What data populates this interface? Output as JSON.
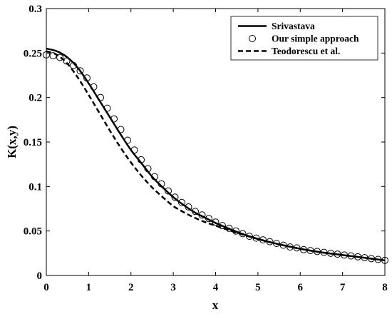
{
  "chart_data": {
    "type": "line",
    "title": "",
    "xlabel": "x",
    "ylabel": "K(x,y)",
    "xlim": [
      0,
      8
    ],
    "ylim": [
      0,
      0.3
    ],
    "xticks": [
      0,
      1,
      2,
      3,
      4,
      5,
      6,
      7,
      8
    ],
    "xtick_labels": [
      "0",
      "1",
      "2",
      "3",
      "4",
      "5",
      "6",
      "7",
      "8"
    ],
    "yticks": [
      0,
      0.05,
      0.1,
      0.15,
      0.2,
      0.25,
      0.3
    ],
    "ytick_labels": [
      "0",
      "0.05",
      "0.1",
      "0.15",
      "0.2",
      "0.25",
      "0.3"
    ],
    "grid": false,
    "legend_position": "top-right",
    "series": [
      {
        "name": "Srivastava",
        "style": "solid",
        "color": "#000000",
        "x": [
          0,
          0.25,
          0.5,
          0.75,
          1.0,
          1.25,
          1.5,
          1.75,
          2.0,
          2.25,
          2.5,
          2.75,
          3.0,
          3.25,
          3.5,
          3.75,
          4.0,
          4.5,
          5.0,
          5.5,
          6.0,
          6.5,
          7.0,
          7.5,
          8.0
        ],
        "y": [
          0.255,
          0.252,
          0.245,
          0.233,
          0.216,
          0.197,
          0.178,
          0.159,
          0.141,
          0.126,
          0.111,
          0.099,
          0.088,
          0.079,
          0.071,
          0.065,
          0.059,
          0.049,
          0.041,
          0.035,
          0.03,
          0.026,
          0.023,
          0.02,
          0.017
        ]
      },
      {
        "name": "Our simple approach",
        "style": "markers",
        "marker": "circle",
        "color": "#000000",
        "x": [
          0,
          0.16,
          0.32,
          0.48,
          0.64,
          0.8,
          0.96,
          1.12,
          1.28,
          1.44,
          1.6,
          1.76,
          1.92,
          2.08,
          2.24,
          2.4,
          2.56,
          2.72,
          2.88,
          3.04,
          3.2,
          3.36,
          3.52,
          3.68,
          3.84,
          4.0,
          4.16,
          4.32,
          4.48,
          4.64,
          4.8,
          4.96,
          5.12,
          5.28,
          5.44,
          5.6,
          5.76,
          5.92,
          6.08,
          6.24,
          6.4,
          6.56,
          6.72,
          6.88,
          7.04,
          7.2,
          7.36,
          7.52,
          7.68,
          7.84,
          8.0
        ],
        "y": [
          0.248,
          0.247,
          0.245,
          0.241,
          0.236,
          0.23,
          0.222,
          0.212,
          0.2,
          0.188,
          0.176,
          0.164,
          0.152,
          0.141,
          0.13,
          0.12,
          0.111,
          0.103,
          0.095,
          0.088,
          0.082,
          0.077,
          0.072,
          0.068,
          0.064,
          0.06,
          0.056,
          0.053,
          0.05,
          0.047,
          0.044,
          0.042,
          0.04,
          0.038,
          0.036,
          0.034,
          0.032,
          0.031,
          0.029,
          0.028,
          0.027,
          0.026,
          0.025,
          0.024,
          0.023,
          0.022,
          0.021,
          0.02,
          0.019,
          0.018,
          0.017
        ]
      },
      {
        "name": "Teodorescu et al.",
        "style": "dashed",
        "color": "#000000",
        "x": [
          0,
          0.25,
          0.5,
          0.75,
          1.0,
          1.25,
          1.5,
          1.75,
          2.0,
          2.25,
          2.5,
          2.75,
          3.0,
          3.25,
          3.5,
          3.75,
          4.0,
          4.5,
          5.0,
          5.5,
          6.0,
          6.5,
          7.0,
          7.5,
          8.0
        ],
        "y": [
          0.252,
          0.248,
          0.238,
          0.222,
          0.203,
          0.183,
          0.163,
          0.144,
          0.127,
          0.112,
          0.099,
          0.088,
          0.078,
          0.071,
          0.065,
          0.06,
          0.056,
          0.048,
          0.041,
          0.035,
          0.03,
          0.026,
          0.023,
          0.02,
          0.017
        ]
      }
    ]
  }
}
